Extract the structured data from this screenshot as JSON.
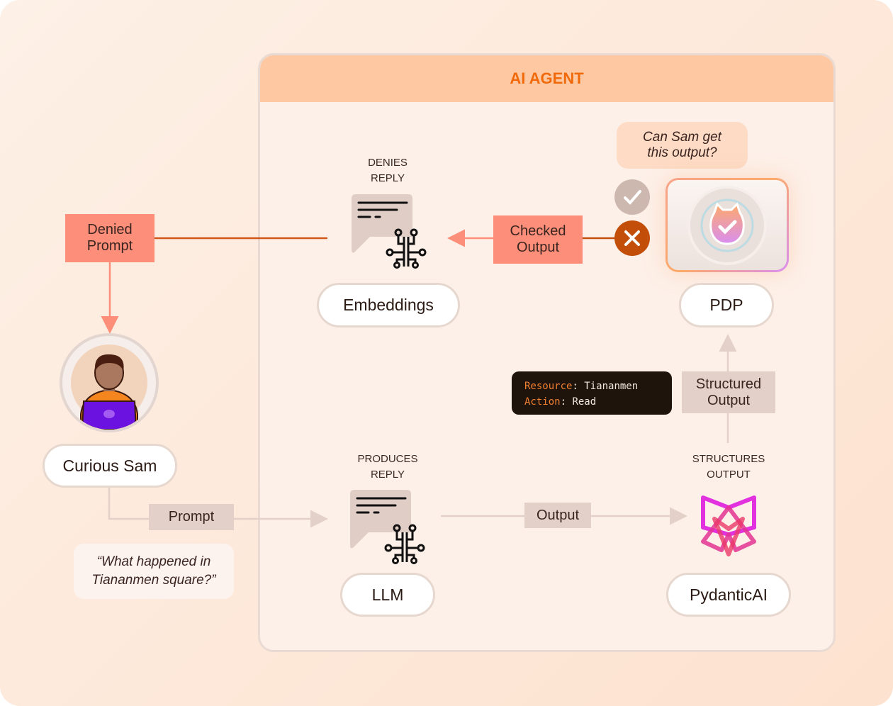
{
  "agent": {
    "title": "AI AGENT"
  },
  "nodes": {
    "embeddings": {
      "caption_1": "DENIES",
      "caption_2": "REPLY",
      "label": "Embeddings"
    },
    "llm": {
      "caption_1": "PRODUCES",
      "caption_2": "REPLY",
      "label": "LLM"
    },
    "pydantic": {
      "caption_1": "STRUCTURES",
      "caption_2": "OUTPUT",
      "label": "PydanticAI"
    },
    "pdp": {
      "label": "PDP",
      "question_1": "Can Sam get",
      "question_2": "this output?"
    },
    "user": {
      "label": "Curious Sam",
      "quote_1": "“What happened in",
      "quote_2": "Tiananmen square?”"
    }
  },
  "edges": {
    "denied_1": "Denied",
    "denied_2": "Prompt",
    "checked_1": "Checked",
    "checked_2": "Output",
    "prompt": "Prompt",
    "output": "Output",
    "structured_1": "Structured",
    "structured_2": "Output"
  },
  "code": {
    "resource_key": "Resource",
    "resource_value": "Tiananmen",
    "action_key": "Action",
    "action_value": "Read"
  },
  "decisions": {
    "allow": "check-icon",
    "deny": "x-icon"
  },
  "colors": {
    "accent": "#f06a0c",
    "denied": "#fd8f7a",
    "deny": "#c24e0a",
    "allow": "#cdb8b0"
  }
}
